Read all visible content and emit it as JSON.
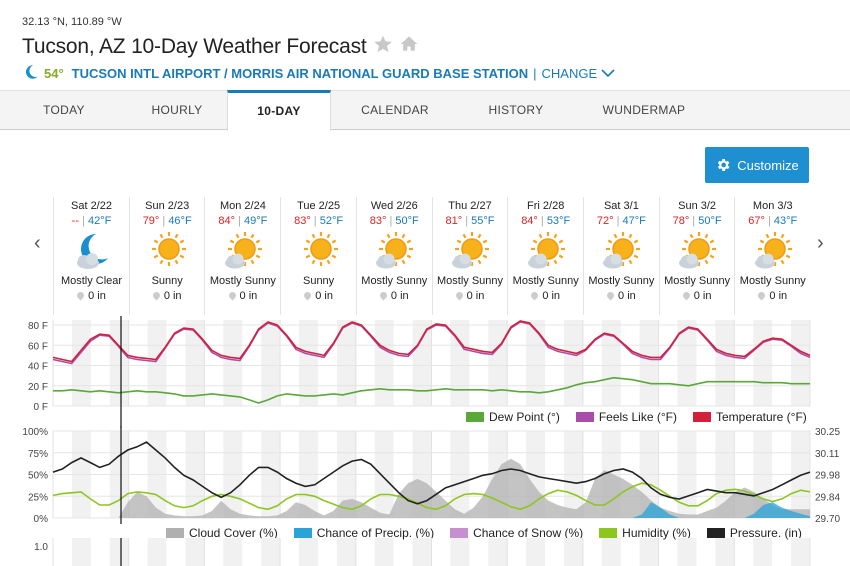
{
  "header": {
    "coords": "32.13 °N, 110.89 °W",
    "title": "Tucson, AZ 10-Day Weather Forecast",
    "station_temp": "54°",
    "station_name": "TUCSON INTL AIRPORT / MORRIS AIR NATIONAL GUARD BASE STATION",
    "station_sep": "|",
    "change_label": "CHANGE"
  },
  "tabs": [
    {
      "label": "TODAY"
    },
    {
      "label": "HOURLY"
    },
    {
      "label": "10-DAY",
      "active": true
    },
    {
      "label": "CALENDAR"
    },
    {
      "label": "HISTORY"
    },
    {
      "label": "WUNDERMAP"
    }
  ],
  "customize_label": "Customize",
  "days": [
    {
      "label": "Sat 2/22",
      "hi": "--",
      "lo": "42°F",
      "cond": "Mostly Clear",
      "precip": "0 in",
      "icon": "moon-cloud-icon"
    },
    {
      "label": "Sun 2/23",
      "hi": "79°",
      "lo": "46°F",
      "cond": "Sunny",
      "precip": "0 in",
      "icon": "sun-icon"
    },
    {
      "label": "Mon 2/24",
      "hi": "84°",
      "lo": "49°F",
      "cond": "Mostly Sunny",
      "precip": "0 in",
      "icon": "sun-cloud-icon"
    },
    {
      "label": "Tue 2/25",
      "hi": "83°",
      "lo": "52°F",
      "cond": "Sunny",
      "precip": "0 in",
      "icon": "sun-icon"
    },
    {
      "label": "Wed 2/26",
      "hi": "83°",
      "lo": "50°F",
      "cond": "Mostly Sunny",
      "precip": "0 in",
      "icon": "sun-cloud-icon"
    },
    {
      "label": "Thu 2/27",
      "hi": "81°",
      "lo": "55°F",
      "cond": "Mostly Sunny",
      "precip": "0 in",
      "icon": "sun-cloud-icon"
    },
    {
      "label": "Fri 2/28",
      "hi": "84°",
      "lo": "53°F",
      "cond": "Mostly Sunny",
      "precip": "0 in",
      "icon": "sun-cloud-icon"
    },
    {
      "label": "Sat 3/1",
      "hi": "72°",
      "lo": "47°F",
      "cond": "Mostly Sunny",
      "precip": "0 in",
      "icon": "sun-cloud-icon"
    },
    {
      "label": "Sun 3/2",
      "hi": "78°",
      "lo": "50°F",
      "cond": "Mostly Sunny",
      "precip": "0 in",
      "icon": "sun-cloud-icon"
    },
    {
      "label": "Mon 3/3",
      "hi": "67°",
      "lo": "43°F",
      "cond": "Mostly Sunny",
      "precip": "0 in",
      "icon": "sun-cloud-icon"
    }
  ],
  "colors": {
    "temperature": "#d41f3a",
    "feels_like": "#a94da8",
    "dew_point": "#5aa83a",
    "cloud_cover": "#b0b0b0",
    "precip": "#2aa3d8",
    "snow": "#c88fd0",
    "humidity": "#8cc61e",
    "pressure": "#222222"
  },
  "chart_data": [
    {
      "type": "line",
      "yticks": [
        "80 F",
        "60 F",
        "40 F",
        "20 F",
        "0 F"
      ],
      "ylim": [
        0,
        85
      ],
      "x_days": 10,
      "legend": [
        "Dew Point (°)",
        "Feels Like (°F)",
        "Temperature (°F)"
      ],
      "series": [
        {
          "name": "Temperature (°F)",
          "values": [
            48,
            46,
            44,
            55,
            66,
            71,
            70,
            60,
            50,
            48,
            47,
            46,
            58,
            72,
            77,
            76,
            66,
            55,
            50,
            48,
            47,
            60,
            76,
            83,
            80,
            70,
            58,
            54,
            52,
            50,
            62,
            78,
            83,
            80,
            70,
            60,
            55,
            52,
            51,
            60,
            76,
            81,
            80,
            70,
            58,
            56,
            54,
            53,
            62,
            78,
            84,
            82,
            72,
            60,
            56,
            54,
            52,
            56,
            66,
            72,
            70,
            62,
            54,
            50,
            48,
            48,
            58,
            72,
            78,
            76,
            66,
            56,
            52,
            50,
            49,
            56,
            64,
            67,
            66,
            60,
            54,
            50
          ]
        },
        {
          "name": "Feels Like (°F)",
          "values": [
            46,
            44,
            42,
            53,
            64,
            70,
            69,
            59,
            48,
            46,
            45,
            44,
            57,
            71,
            76,
            75,
            65,
            53,
            48,
            46,
            45,
            59,
            75,
            82,
            79,
            69,
            56,
            52,
            50,
            48,
            61,
            77,
            82,
            79,
            69,
            58,
            53,
            50,
            49,
            59,
            75,
            80,
            79,
            69,
            56,
            54,
            52,
            51,
            61,
            77,
            83,
            81,
            71,
            58,
            54,
            52,
            50,
            55,
            65,
            71,
            69,
            61,
            52,
            48,
            46,
            46,
            57,
            71,
            77,
            75,
            65,
            54,
            50,
            48,
            47,
            55,
            63,
            66,
            65,
            59,
            52,
            48
          ]
        },
        {
          "name": "Dew Point (°)",
          "values": [
            15,
            15,
            16,
            15,
            14,
            15,
            14,
            13,
            14,
            15,
            14,
            14,
            13,
            12,
            10,
            10,
            11,
            12,
            11,
            10,
            9,
            6,
            3,
            6,
            10,
            12,
            11,
            10,
            10,
            11,
            12,
            11,
            13,
            15,
            16,
            17,
            16,
            16,
            16,
            15,
            15,
            16,
            17,
            16,
            16,
            16,
            16,
            15,
            16,
            15,
            14,
            14,
            13,
            14,
            16,
            18,
            21,
            23,
            24,
            26,
            28,
            27,
            26,
            24,
            22,
            22,
            22,
            21,
            20,
            22,
            24,
            24,
            24,
            24,
            24,
            24,
            23,
            23,
            23,
            22,
            22,
            22
          ]
        }
      ]
    },
    {
      "type": "area",
      "yticks_left": [
        "100%",
        "75%",
        "50%",
        "25%",
        "0%"
      ],
      "yticks_right": [
        "30.25",
        "30.11",
        "29.98",
        "29.84",
        "29.70"
      ],
      "ylim": [
        0,
        100
      ],
      "pressure_ylim": [
        29.7,
        30.25
      ],
      "legend": [
        "Cloud Cover (%)",
        "Chance of Precip. (%)",
        "Chance of Snow (%)",
        "Humidity (%)",
        "Pressure. (in)"
      ],
      "series": [
        {
          "name": "Pressure. (in)",
          "values": [
            29.99,
            30.01,
            30.05,
            30.08,
            30.05,
            30.02,
            30.04,
            30.09,
            30.13,
            30.15,
            30.18,
            30.13,
            30.08,
            30.02,
            29.97,
            29.94,
            29.9,
            29.86,
            29.83,
            29.86,
            29.91,
            29.97,
            30.02,
            30.02,
            29.99,
            29.95,
            29.92,
            29.9,
            29.91,
            29.95,
            29.99,
            30.03,
            30.06,
            30.07,
            30.04,
            29.98,
            29.92,
            29.86,
            29.81,
            29.79,
            29.81,
            29.85,
            29.89,
            29.91,
            29.93,
            29.95,
            29.97,
            29.98,
            30.0,
            30.01,
            30.0,
            29.98,
            29.96,
            29.95,
            29.94,
            29.93,
            29.92,
            29.93,
            29.95,
            29.98,
            30.0,
            30.01,
            29.99,
            29.95,
            29.89,
            29.85,
            29.83,
            29.82,
            29.84,
            29.86,
            29.88,
            29.87,
            29.86,
            29.86,
            29.85,
            29.84,
            29.86,
            29.88,
            29.91,
            29.94,
            29.97,
            29.99
          ]
        },
        {
          "name": "Humidity (%)",
          "values": [
            26,
            28,
            29,
            30,
            22,
            15,
            15,
            20,
            28,
            30,
            29,
            27,
            20,
            14,
            12,
            14,
            20,
            25,
            27,
            25,
            22,
            17,
            12,
            10,
            14,
            22,
            27,
            27,
            25,
            20,
            16,
            12,
            10,
            14,
            22,
            27,
            27,
            25,
            22,
            17,
            12,
            10,
            14,
            22,
            27,
            28,
            27,
            23,
            18,
            13,
            10,
            14,
            22,
            28,
            32,
            30,
            26,
            20,
            15,
            15,
            22,
            30,
            36,
            40,
            38,
            32,
            25,
            18,
            14,
            14,
            20,
            28,
            32,
            33,
            31,
            27,
            22,
            19,
            22,
            28,
            32,
            30
          ]
        },
        {
          "name": "Cloud Cover (%)",
          "values": [
            0,
            0,
            0,
            0,
            0,
            0,
            0,
            0,
            18,
            30,
            25,
            12,
            5,
            3,
            2,
            2,
            3,
            8,
            20,
            10,
            5,
            3,
            2,
            2,
            3,
            8,
            18,
            15,
            8,
            3,
            8,
            20,
            22,
            18,
            12,
            6,
            4,
            28,
            40,
            45,
            40,
            30,
            20,
            10,
            5,
            12,
            25,
            45,
            62,
            68,
            62,
            45,
            30,
            20,
            15,
            12,
            10,
            18,
            45,
            55,
            50,
            45,
            38,
            30,
            20,
            12,
            8,
            5,
            4,
            4,
            8,
            12,
            20,
            30,
            35,
            30,
            22,
            15,
            10,
            10,
            10,
            10
          ]
        },
        {
          "name": "Chance of Precip. (%)",
          "values": [
            0,
            0,
            0,
            0,
            0,
            0,
            0,
            0,
            0,
            0,
            0,
            0,
            0,
            0,
            0,
            0,
            0,
            0,
            0,
            0,
            0,
            0,
            0,
            0,
            0,
            0,
            0,
            0,
            0,
            0,
            0,
            0,
            0,
            0,
            0,
            0,
            0,
            0,
            0,
            0,
            0,
            0,
            0,
            0,
            0,
            0,
            0,
            0,
            0,
            0,
            0,
            0,
            0,
            0,
            0,
            0,
            0,
            0,
            0,
            0,
            0,
            0,
            0,
            4,
            18,
            12,
            4,
            0,
            0,
            0,
            0,
            0,
            0,
            0,
            0,
            5,
            15,
            18,
            12,
            8,
            5,
            2
          ]
        }
      ]
    }
  ],
  "bottom_tick": "1.0"
}
